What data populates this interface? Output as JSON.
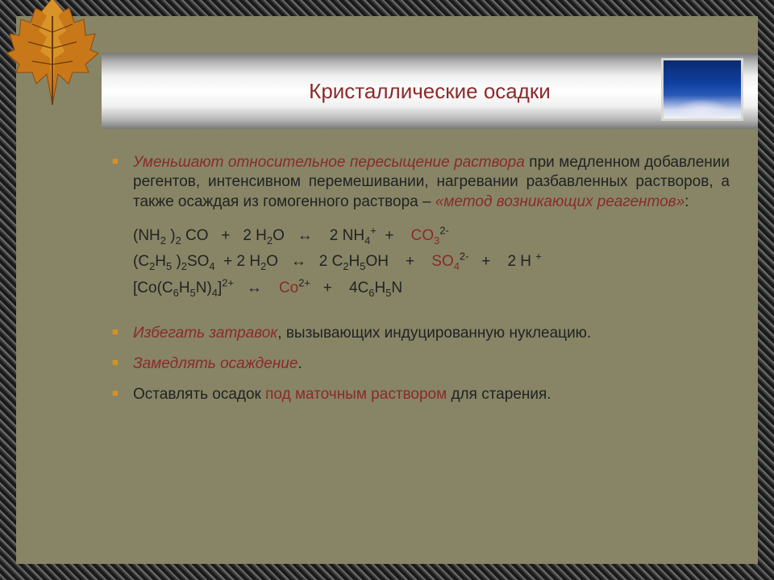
{
  "title": "Кристаллические осадки",
  "colors": {
    "emphasis": "#8b2a2a",
    "bullet": "#d89020",
    "text": "#222222",
    "content_bg": "#878566"
  },
  "leaf": {
    "fill1": "#c87818",
    "fill2": "#e0a030",
    "fill3": "#8a4a10",
    "stem": "#6a3a08"
  },
  "paragraph1": {
    "lead": "Уменьшают относительное пересыщение раствора",
    "rest": " при медленном добавлении регентов, интенсивном перемешивании, нагревании разбавленных растворов, а также осаждая из гомогенного раствора – ",
    "method": "«метод возникающих реагентов»",
    "tail": ":"
  },
  "equations": {
    "eq1": {
      "html": "(NH<sub>2</sub> )<sub>2</sub> CO&nbsp;&nbsp; +&nbsp;&nbsp; 2 H<sub>2</sub>O&nbsp;&nbsp; ↔&nbsp;&nbsp;&nbsp; 2 NH<sub>4</sub><sup>+</sup>&nbsp; +&nbsp;&nbsp;&nbsp; <span class=\"red\">CO<sub>3</sub></span><sup>2-</sup>"
    },
    "eq2": {
      "html": "(C<sub>2</sub>H<sub>5</sub> )<sub>2</sub>SO<sub>4</sub>&nbsp; + 2 H<sub>2</sub>O&nbsp;&nbsp; ↔&nbsp;&nbsp; 2 C<sub>2</sub>H<sub>5</sub>OH&nbsp;&nbsp;&nbsp; +&nbsp;&nbsp;&nbsp; <span class=\"red\">SO<sub>4</sub></span><sup>2-</sup>&nbsp;&nbsp; +&nbsp;&nbsp;&nbsp; 2 H <sup>+</sup>"
    },
    "eq3": {
      "html": "[Co(C<sub>6</sub>H<sub>5</sub>N)<sub>4</sub>]<sup>2+</sup>&nbsp;&nbsp; ↔&nbsp;&nbsp;&nbsp; <span class=\"red\">Co</span><sup>2+</sup>&nbsp;&nbsp; +&nbsp;&nbsp;&nbsp; 4C<sub>6</sub>H<sub>5</sub>N"
    }
  },
  "bullet2": {
    "lead": "Избегать затравок",
    "rest": ", вызывающих индуцированную нуклеацию."
  },
  "bullet3": {
    "lead": "Замедлять осаждение",
    "rest": "."
  },
  "bullet4": {
    "pre": "Оставлять осадок ",
    "em": "под маточным раствором",
    "post": " для старения."
  }
}
